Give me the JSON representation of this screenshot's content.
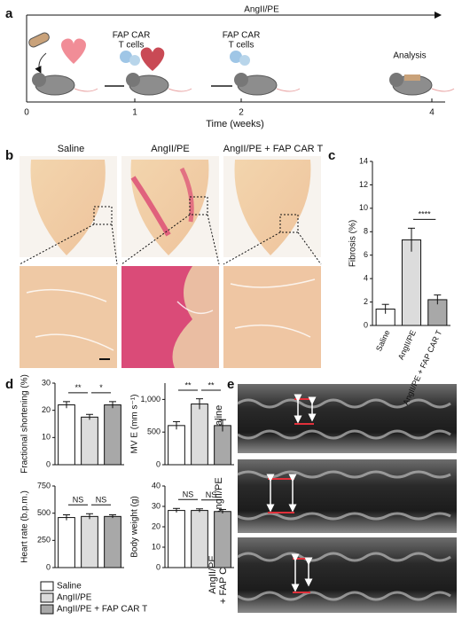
{
  "panels": {
    "a": "a",
    "b": "b",
    "c": "c",
    "d": "d",
    "e": "e"
  },
  "timeline": {
    "treatment": "AngII/PE",
    "injection_1": [
      "FAP CAR",
      "T cells"
    ],
    "injection_2": [
      "FAP CAR",
      "T cells"
    ],
    "analysis": "Analysis",
    "ticks": [
      "0",
      "1",
      "2",
      "4"
    ],
    "axis_label": "Time (weeks)"
  },
  "histology": {
    "columns": [
      "Saline",
      "AngII/PE",
      "AngII/PE + FAP CAR T"
    ]
  },
  "echo": {
    "rows": [
      [
        "Saline"
      ],
      [
        "AngII/PE"
      ],
      [
        "AngII/PE",
        "+ FAP CAR T"
      ]
    ]
  },
  "legend": {
    "items": [
      "Saline",
      "AngII/PE",
      "AngII/PE + FAP CAR T"
    ],
    "colors": [
      "#ffffff",
      "#dcdcdc",
      "#a8a8a8"
    ]
  },
  "chart_data": [
    {
      "type": "bar",
      "ylabel": "Fibrosis (%)",
      "categories": [
        "Saline",
        "AngII/PE",
        "AngII/PE + FAP CAR T"
      ],
      "values": [
        1.4,
        7.3,
        2.2
      ],
      "errors": [
        0.4,
        1.0,
        0.4
      ],
      "colors": [
        "#ffffff",
        "#dcdcdc",
        "#a8a8a8"
      ],
      "ylim": [
        0,
        14
      ],
      "yticks": [
        0,
        2,
        4,
        6,
        8,
        10,
        12,
        14
      ],
      "significance": [
        null,
        "****"
      ]
    },
    {
      "type": "bar",
      "ylabel": "Fractional shortening (%)",
      "categories": [
        null,
        null,
        null
      ],
      "values": [
        22,
        17.5,
        22
      ],
      "errors": [
        1.2,
        1.0,
        1.2
      ],
      "colors": [
        "#ffffff",
        "#dcdcdc",
        "#a8a8a8"
      ],
      "ylim": [
        0,
        30
      ],
      "yticks": [
        0,
        10,
        20,
        30
      ],
      "significance": [
        "**",
        "*"
      ]
    },
    {
      "type": "bar",
      "ylabel": "MV E (mm s⁻¹)",
      "categories": [
        null,
        null,
        null
      ],
      "values": [
        600,
        930,
        600
      ],
      "errors": [
        60,
        80,
        90
      ],
      "colors": [
        "#ffffff",
        "#dcdcdc",
        "#a8a8a8"
      ],
      "ylim": [
        0,
        1250
      ],
      "yticks": [
        0,
        500,
        {
          "value": 1000,
          "label": "1,000"
        }
      ],
      "significance": [
        "**",
        "**"
      ]
    },
    {
      "type": "bar",
      "ylabel": "Heart rate (b.p.m.)",
      "categories": [
        null,
        null,
        null
      ],
      "values": [
        460,
        470,
        470
      ],
      "errors": [
        25,
        25,
        15
      ],
      "colors": [
        "#ffffff",
        "#dcdcdc",
        "#a8a8a8"
      ],
      "ylim": [
        0,
        750
      ],
      "yticks": [
        0,
        250,
        500,
        750
      ],
      "significance": [
        "NS",
        "NS"
      ]
    },
    {
      "type": "bar",
      "ylabel": "Body weight (g)",
      "categories": [
        null,
        null,
        null
      ],
      "values": [
        28,
        28,
        27.5
      ],
      "errors": [
        1,
        0.8,
        1
      ],
      "colors": [
        "#ffffff",
        "#dcdcdc",
        "#a8a8a8"
      ],
      "ylim": [
        0,
        40
      ],
      "yticks": [
        0,
        10,
        20,
        30,
        40
      ],
      "significance": [
        "NS",
        "NS"
      ]
    }
  ]
}
